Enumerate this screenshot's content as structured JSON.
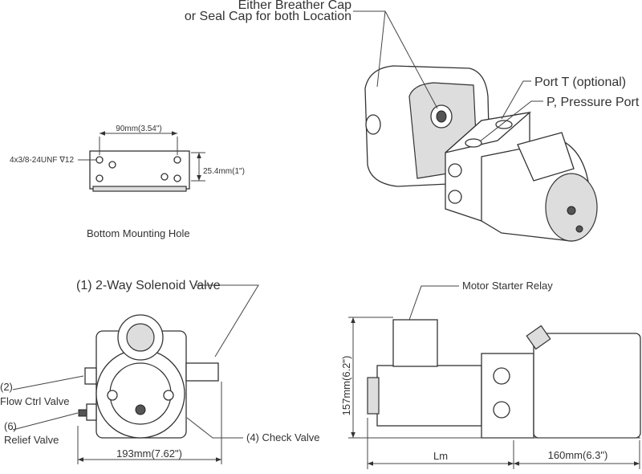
{
  "labels": {
    "breather_cap_1": "Either Breather Cap",
    "breather_cap_2": "or Seal Cap for both Location",
    "port_t": "Port T (optional)",
    "pressure_port": "P, Pressure Port",
    "hole_spacing": "90mm(3.54\")",
    "thread": "4x3/8-24UNF ∇12",
    "hole_offset": "25.4mm(1\")",
    "bottom_mounting_hole": "Bottom Mounting Hole",
    "solenoid_valve": "(1) 2-Way Solenoid Valve",
    "flow_ctrl_num": "(2)",
    "flow_ctrl": "Flow Ctrl Valve",
    "relief_num": "(6)",
    "relief": "Relief Valve",
    "check_valve": "(4) Check Valve",
    "width": "193mm(7.62\")",
    "motor_starter_relay": "Motor Starter Relay",
    "height": "157mm(6.2\")",
    "length_motor": "Lm",
    "length_tank": "160mm(6.3\")"
  }
}
